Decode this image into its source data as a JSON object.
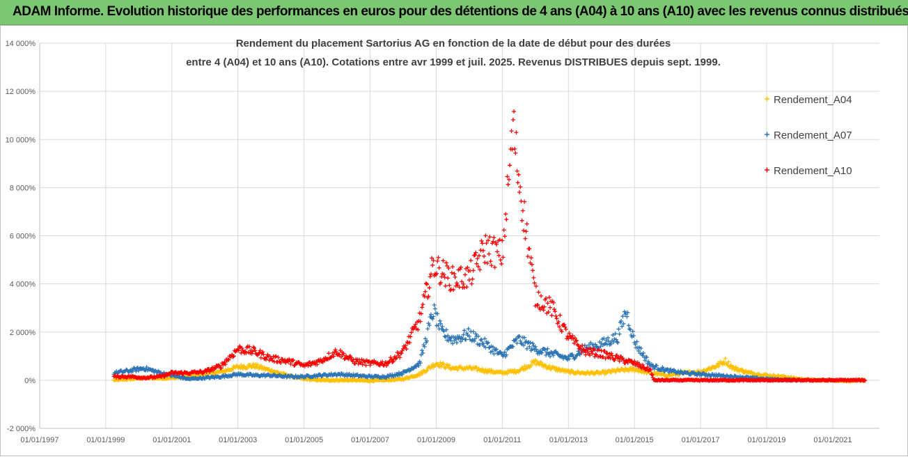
{
  "banner": {
    "title": "ADAM Informe. Evolution historique des performances en euros pour des détentions de 4 ans (A04) à 10 ans (A10) avec les revenus connus distribués",
    "color": "#7cc771"
  },
  "chart_data": {
    "type": "scatter",
    "title_line1": "Rendement du placement Sartorius AG en fonction de la date de début pour des durées",
    "title_line2": "entre 4 (A04) et 10 ans (A10). Cotations entre avr 1999 et juil. 2025. Revenus DISTRIBUES depuis sept. 1999.",
    "x_axis": {
      "type": "date",
      "range": [
        "1997-01-01",
        "2022-06-01"
      ],
      "tick_labels": [
        "01/01/1997",
        "01/01/1999",
        "01/01/2001",
        "01/01/2003",
        "01/01/2005",
        "01/01/2007",
        "01/01/2009",
        "01/01/2011",
        "01/01/2013",
        "01/01/2015",
        "01/01/2017",
        "01/01/2019",
        "01/01/2021"
      ]
    },
    "y_axis": {
      "range": [
        -2000,
        14000
      ],
      "ticks": [
        -2000,
        0,
        2000,
        4000,
        6000,
        8000,
        10000,
        12000,
        14000
      ],
      "tick_labels": [
        "-2 000%",
        "0%",
        "2 000%",
        "4 000%",
        "6 000%",
        "8 000%",
        "10 000%",
        "12 000%",
        "14 000%"
      ]
    },
    "grid": true,
    "legend_position": "right",
    "marker": "+",
    "series": [
      {
        "name": "Rendement_A04",
        "color": "#ffc000",
        "points": [
          [
            "1999-04-01",
            0
          ],
          [
            "1999-10-01",
            50
          ],
          [
            "2000-03-01",
            100
          ],
          [
            "2000-09-01",
            80
          ],
          [
            "2001-01-01",
            100
          ],
          [
            "2001-07-01",
            150
          ],
          [
            "2002-01-01",
            250
          ],
          [
            "2002-07-01",
            350
          ],
          [
            "2003-01-01",
            550
          ],
          [
            "2003-07-01",
            600
          ],
          [
            "2004-01-01",
            400
          ],
          [
            "2004-07-01",
            200
          ],
          [
            "2005-01-01",
            50
          ],
          [
            "2005-07-01",
            0
          ],
          [
            "2006-01-01",
            0
          ],
          [
            "2006-07-01",
            0
          ],
          [
            "2007-01-01",
            -20
          ],
          [
            "2007-07-01",
            0
          ],
          [
            "2008-01-01",
            50
          ],
          [
            "2008-07-01",
            250
          ],
          [
            "2009-01-01",
            700
          ],
          [
            "2009-07-01",
            500
          ],
          [
            "2010-01-01",
            500
          ],
          [
            "2010-07-01",
            400
          ],
          [
            "2011-01-01",
            300
          ],
          [
            "2011-07-01",
            400
          ],
          [
            "2012-01-01",
            750
          ],
          [
            "2012-07-01",
            500
          ],
          [
            "2013-01-01",
            350
          ],
          [
            "2013-07-01",
            300
          ],
          [
            "2014-01-01",
            300
          ],
          [
            "2014-07-01",
            400
          ],
          [
            "2015-01-01",
            450
          ],
          [
            "2015-07-01",
            300
          ],
          [
            "2016-01-01",
            200
          ],
          [
            "2016-07-01",
            300
          ],
          [
            "2017-01-01",
            350
          ],
          [
            "2017-07-01",
            600
          ],
          [
            "2017-10-01",
            800
          ],
          [
            "2018-01-01",
            500
          ],
          [
            "2018-07-01",
            300
          ],
          [
            "2019-01-01",
            200
          ],
          [
            "2019-07-01",
            150
          ],
          [
            "2020-01-01",
            50
          ],
          [
            "2020-07-01",
            0
          ],
          [
            "2021-01-01",
            0
          ],
          [
            "2021-07-01",
            -30
          ],
          [
            "2022-01-01",
            0
          ]
        ]
      },
      {
        "name": "Rendement_A07",
        "color": "#2e75b6",
        "points": [
          [
            "1999-04-01",
            300
          ],
          [
            "1999-10-01",
            400
          ],
          [
            "2000-03-01",
            500
          ],
          [
            "2000-09-01",
            300
          ],
          [
            "2001-01-01",
            200
          ],
          [
            "2001-07-01",
            50
          ],
          [
            "2002-01-01",
            100
          ],
          [
            "2002-07-01",
            150
          ],
          [
            "2003-01-01",
            250
          ],
          [
            "2003-07-01",
            200
          ],
          [
            "2004-01-01",
            200
          ],
          [
            "2004-07-01",
            150
          ],
          [
            "2005-01-01",
            150
          ],
          [
            "2005-07-01",
            200
          ],
          [
            "2006-01-01",
            250
          ],
          [
            "2006-07-01",
            200
          ],
          [
            "2007-01-01",
            150
          ],
          [
            "2007-07-01",
            150
          ],
          [
            "2008-01-01",
            300
          ],
          [
            "2008-07-01",
            700
          ],
          [
            "2008-12-01",
            2900
          ],
          [
            "2009-03-01",
            2000
          ],
          [
            "2009-07-01",
            1700
          ],
          [
            "2010-01-01",
            1900
          ],
          [
            "2010-07-01",
            1500
          ],
          [
            "2011-01-01",
            1000
          ],
          [
            "2011-07-01",
            1700
          ],
          [
            "2012-01-01",
            1300
          ],
          [
            "2012-07-01",
            1100
          ],
          [
            "2013-01-01",
            900
          ],
          [
            "2013-07-01",
            1300
          ],
          [
            "2014-01-01",
            1500
          ],
          [
            "2014-07-01",
            1800
          ],
          [
            "2014-10-01",
            2900
          ],
          [
            "2015-01-01",
            1600
          ],
          [
            "2015-07-01",
            600
          ],
          [
            "2016-01-01",
            400
          ],
          [
            "2016-07-01",
            300
          ],
          [
            "2017-01-01",
            250
          ],
          [
            "2017-07-01",
            200
          ],
          [
            "2018-01-01",
            150
          ],
          [
            "2018-07-01",
            100
          ],
          [
            "2019-01-01",
            50
          ],
          [
            "2019-07-01",
            20
          ],
          [
            "2020-01-01",
            0
          ]
        ]
      },
      {
        "name": "Rendement_A10",
        "color": "#ff0000",
        "points": [
          [
            "1999-04-01",
            150
          ],
          [
            "1999-10-01",
            150
          ],
          [
            "2000-03-01",
            100
          ],
          [
            "2000-09-01",
            150
          ],
          [
            "2001-01-01",
            300
          ],
          [
            "2001-07-01",
            300
          ],
          [
            "2002-01-01",
            350
          ],
          [
            "2002-07-01",
            600
          ],
          [
            "2003-01-01",
            1300
          ],
          [
            "2003-07-01",
            1200
          ],
          [
            "2004-01-01",
            900
          ],
          [
            "2004-07-01",
            800
          ],
          [
            "2005-01-01",
            600
          ],
          [
            "2005-07-01",
            800
          ],
          [
            "2006-01-01",
            1200
          ],
          [
            "2006-07-01",
            800
          ],
          [
            "2007-01-01",
            700
          ],
          [
            "2007-07-01",
            700
          ],
          [
            "2008-01-01",
            1200
          ],
          [
            "2008-07-01",
            2500
          ],
          [
            "2008-12-01",
            4800
          ],
          [
            "2009-03-01",
            4500
          ],
          [
            "2009-07-01",
            4200
          ],
          [
            "2010-01-01",
            4300
          ],
          [
            "2010-07-01",
            5500
          ],
          [
            "2011-01-01",
            5200
          ],
          [
            "2011-05-01",
            10500
          ],
          [
            "2011-07-01",
            8500
          ],
          [
            "2011-10-01",
            6000
          ],
          [
            "2012-01-01",
            3500
          ],
          [
            "2012-07-01",
            3000
          ],
          [
            "2013-01-01",
            1800
          ],
          [
            "2013-07-01",
            1200
          ],
          [
            "2014-01-01",
            1100
          ],
          [
            "2014-07-01",
            900
          ],
          [
            "2015-01-01",
            700
          ],
          [
            "2015-07-01",
            400
          ],
          [
            "2015-08-01",
            0
          ],
          [
            "2016-01-01",
            0
          ],
          [
            "2017-01-01",
            0
          ],
          [
            "2018-01-01",
            0
          ],
          [
            "2019-01-01",
            0
          ],
          [
            "2020-01-01",
            0
          ],
          [
            "2021-01-01",
            0
          ],
          [
            "2022-01-01",
            0
          ]
        ]
      }
    ]
  }
}
